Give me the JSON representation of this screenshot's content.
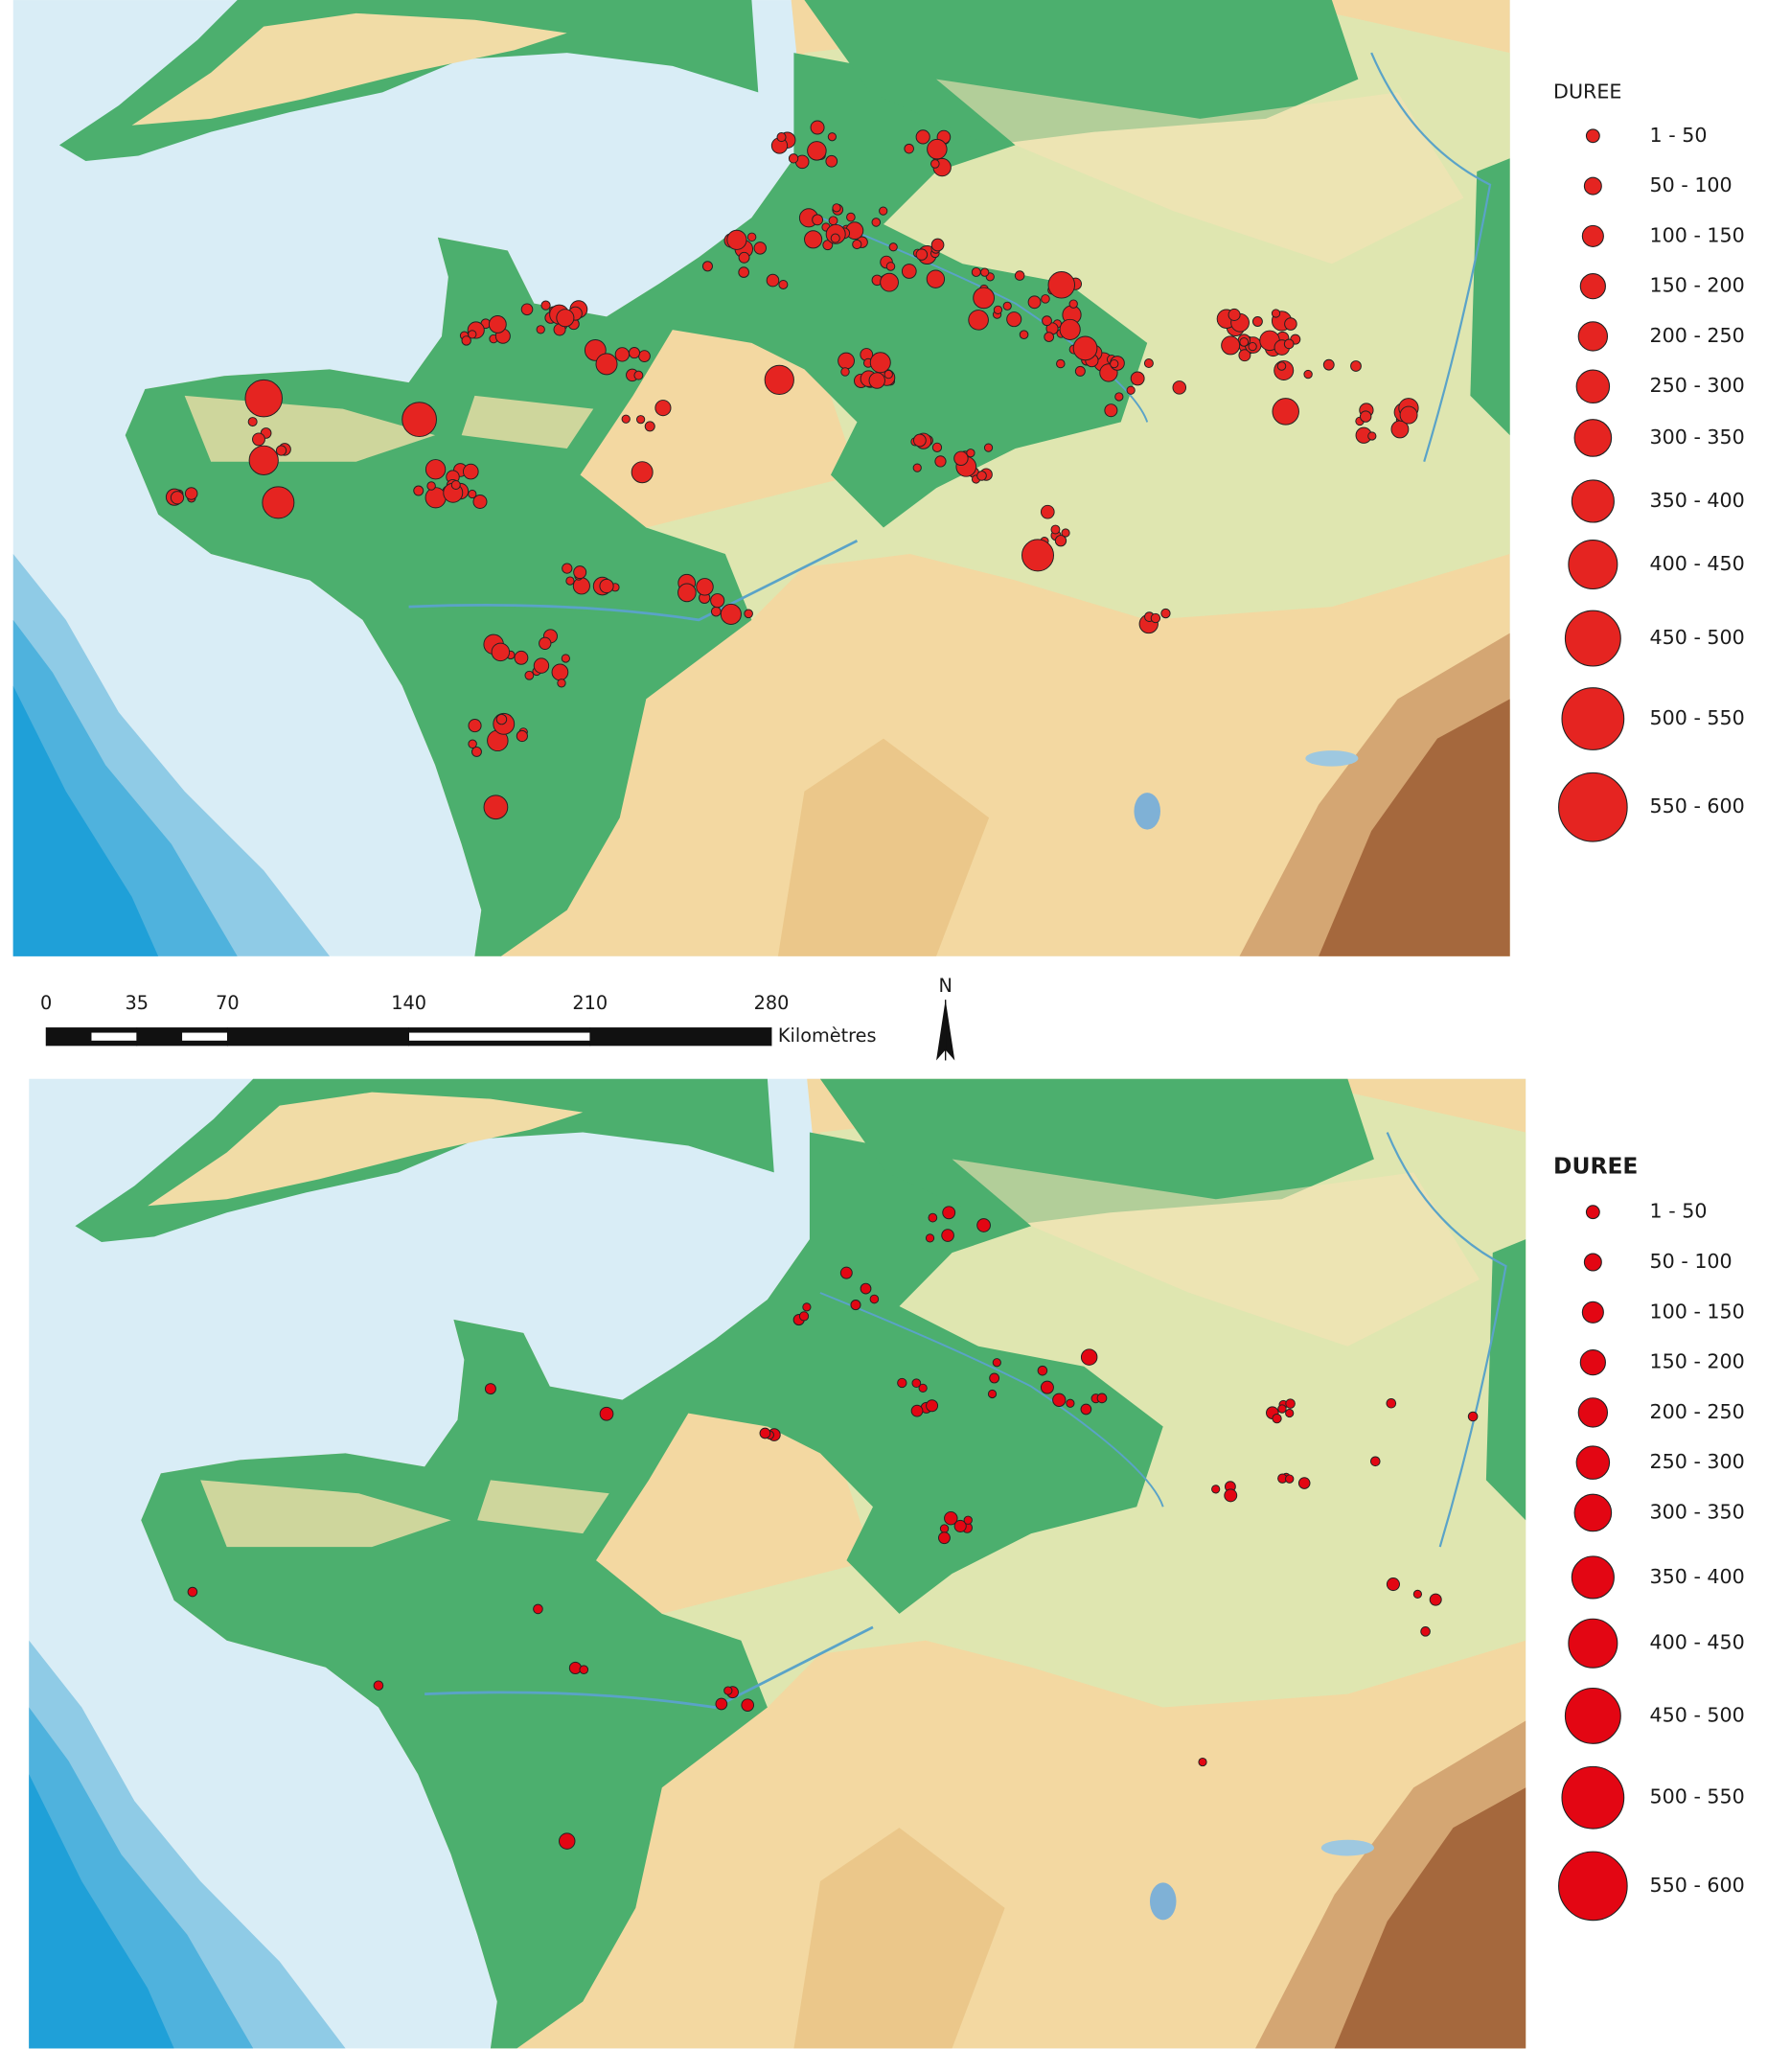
{
  "maps": [
    {
      "legend": {
        "title": "DUREE",
        "items": [
          "1 - 50",
          "50 - 100",
          "100 - 150",
          "150 - 200",
          "200 - 250",
          "250 - 300",
          "300 - 350",
          "350 - 400",
          "400 - 450",
          "450 - 500",
          "500 - 550",
          "550 - 600"
        ]
      }
    },
    {
      "legend": {
        "title": "DUREE",
        "items": [
          "1 - 50",
          "50 - 100",
          "100 - 150",
          "150 - 200",
          "200 - 250",
          "250 - 300",
          "300 - 350",
          "350 - 400",
          "400 - 450",
          "450 - 500",
          "500 - 550",
          "550 - 600"
        ]
      }
    }
  ],
  "scale_bar": {
    "ticks": [
      0,
      35,
      70,
      140,
      210,
      280
    ],
    "unit": "Kilomètres"
  },
  "north_arrow": {
    "label": "N"
  }
}
